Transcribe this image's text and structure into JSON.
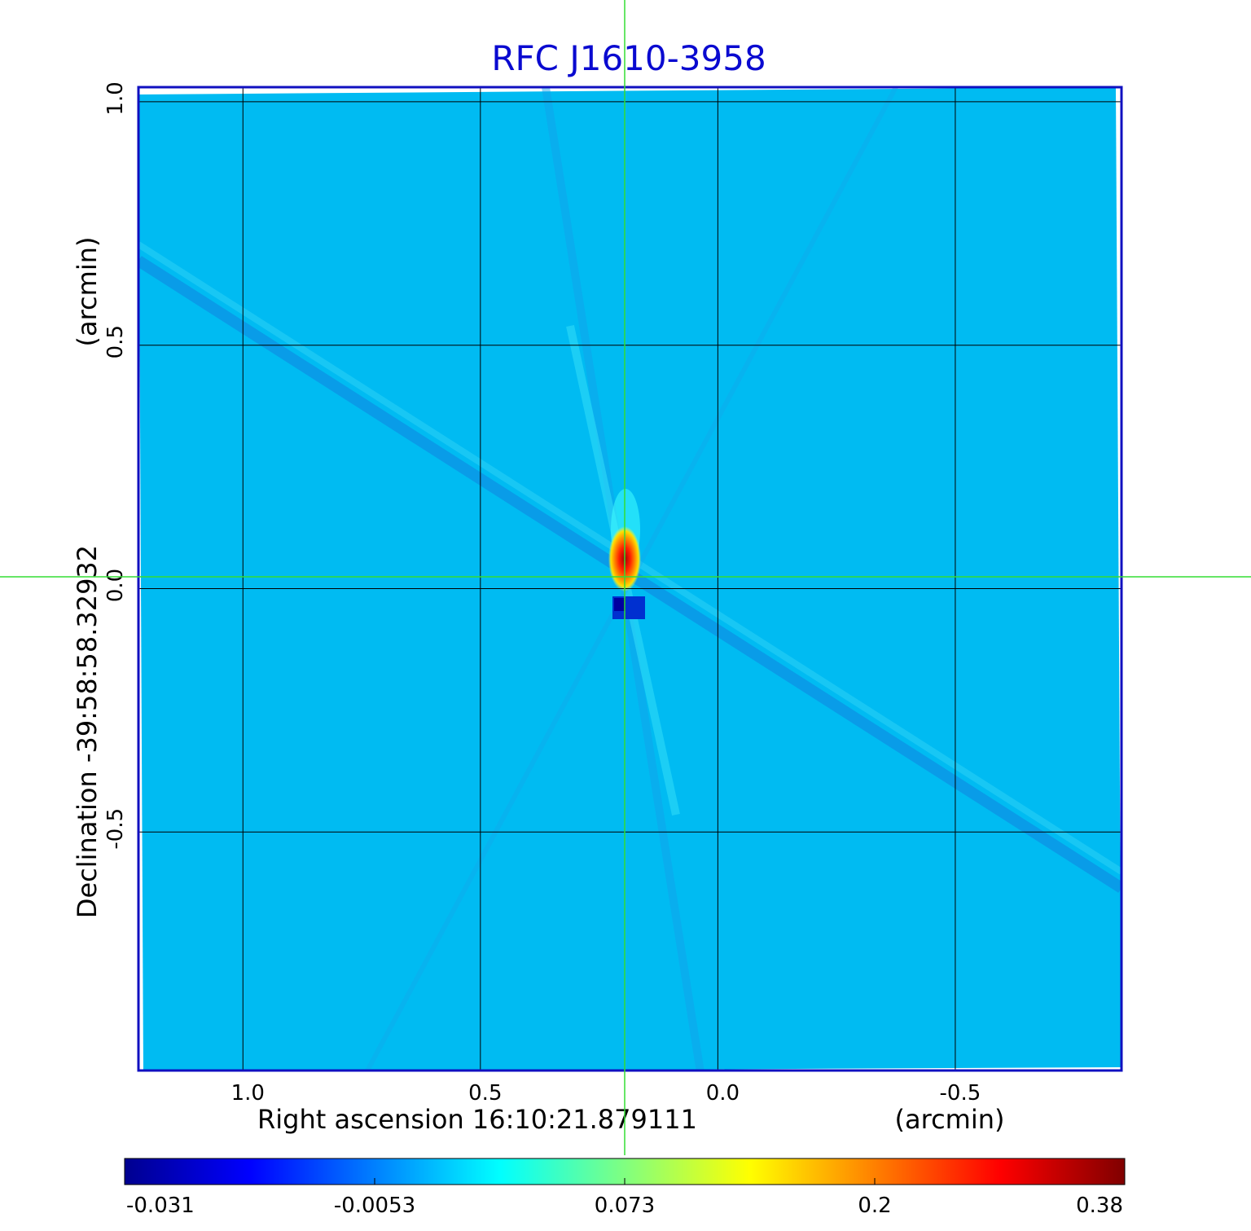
{
  "chart_data": {
    "type": "heatmap",
    "title": "RFC J1610-3958",
    "xlabel": "Right ascension  16:10:21.879111",
    "xunit": "(arcmin)",
    "ylabel": "Declination  -39:58:58.32932",
    "yunit": "(arcmin)",
    "x_ticks": [
      "1.0",
      "0.5",
      "0.0",
      "-0.5"
    ],
    "x_tick_values": [
      1.0,
      0.5,
      0.0,
      -0.5
    ],
    "y_ticks": [
      "1.0",
      "0.5",
      "0.0",
      "-0.5"
    ],
    "y_tick_values": [
      1.0,
      0.5,
      0.0,
      -0.5
    ],
    "xlim": [
      1.22,
      -0.85
    ],
    "ylim": [
      -0.99,
      1.03
    ],
    "grid": true,
    "crosshair": {
      "x": 0.2,
      "y": 0.025,
      "color": "#33dd33"
    },
    "source_peak": {
      "x": 0.2,
      "y": 0.045,
      "value": 0.38
    },
    "colorbar": {
      "ticks": [
        "-0.031",
        "-0.0053",
        "0.073",
        "0.2",
        "0.38"
      ],
      "colormap": [
        "#00008f",
        "#0000ff",
        "#0080ff",
        "#00ffff",
        "#80ff80",
        "#ffff00",
        "#ff8000",
        "#ff0000",
        "#800000"
      ]
    },
    "colors": {
      "title": "#0a0ad0",
      "frame": "#1010c0",
      "background_field": "#00bbf2",
      "grid": "#000000"
    }
  }
}
